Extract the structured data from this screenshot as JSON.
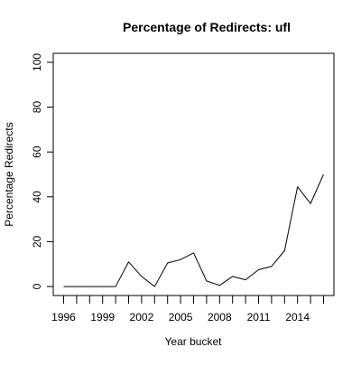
{
  "chart_data": {
    "type": "line",
    "title": "Percentage of Redirects: ufl",
    "xlabel": "Year bucket",
    "ylabel": "Percentage Redirects",
    "x": [
      1996,
      1997,
      1998,
      1999,
      2000,
      2001,
      2002,
      2003,
      2004,
      2005,
      2006,
      2007,
      2008,
      2009,
      2010,
      2011,
      2012,
      2013,
      2014,
      2015,
      2016
    ],
    "series": [
      {
        "values": [
          0,
          0,
          0,
          0,
          0,
          11,
          4.5,
          0,
          10.5,
          12,
          15,
          2.5,
          0.5,
          4.5,
          3,
          7.5,
          9,
          16,
          44.5,
          37,
          50
        ]
      }
    ],
    "x_tick_labels": [
      "1996",
      "1999",
      "2002",
      "2005",
      "2008",
      "2011",
      "2014"
    ],
    "y_ticks": [
      0,
      20,
      40,
      60,
      80,
      100
    ],
    "xlim": [
      1995.2,
      2016.8
    ],
    "ylim": [
      -4,
      104
    ],
    "grid": false,
    "colors": {
      "line": "#000000",
      "axis": "#000000",
      "background": "#ffffff"
    }
  }
}
